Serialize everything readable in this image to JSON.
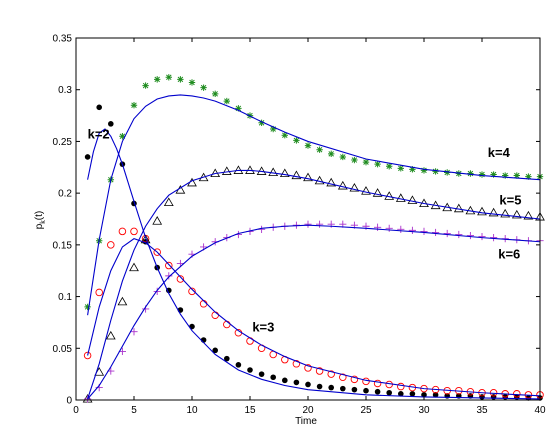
{
  "chart_data": {
    "type": "scatter",
    "title": "",
    "xlabel": "Time",
    "ylabel": "p_k(t)",
    "ylabel_main": "p",
    "ylabel_sub": "k",
    "ylabel_tail": "(t)",
    "xlim": [
      0,
      40
    ],
    "ylim": [
      0,
      0.35
    ],
    "xticks": [
      0,
      5,
      10,
      15,
      20,
      25,
      30,
      35,
      40
    ],
    "yticks": [
      0,
      0.05,
      0.1,
      0.15,
      0.2,
      0.25,
      0.3,
      0.35
    ],
    "grid": false,
    "legend": "none",
    "annotations": [
      {
        "text": "k=2",
        "x": 1.0,
        "y": 0.253
      },
      {
        "text": "k=3",
        "x": 15.2,
        "y": 0.066
      },
      {
        "text": "k=4",
        "x": 35.5,
        "y": 0.235
      },
      {
        "text": "k=5",
        "x": 36.5,
        "y": 0.189
      },
      {
        "text": "k=6",
        "x": 36.4,
        "y": 0.137
      }
    ],
    "series": [
      {
        "key": "k2_points",
        "marker": "filled-circle",
        "color": "#000000",
        "x": [
          1,
          2,
          3,
          4,
          5,
          6,
          7,
          8,
          9,
          10,
          11,
          12,
          13,
          14,
          15,
          16,
          17,
          18,
          19,
          20,
          21,
          22,
          23,
          24,
          25,
          26,
          27,
          28,
          29,
          30,
          31,
          32,
          33,
          34,
          35,
          36,
          37,
          38,
          39,
          40
        ],
        "y": [
          0.235,
          0.283,
          0.267,
          0.228,
          0.19,
          0.153,
          0.128,
          0.106,
          0.087,
          0.071,
          0.058,
          0.048,
          0.04,
          0.034,
          0.029,
          0.025,
          0.022,
          0.019,
          0.017,
          0.015,
          0.013,
          0.012,
          0.011,
          0.01,
          0.009,
          0.008,
          0.007,
          0.006,
          0.006,
          0.005,
          0.005,
          0.004,
          0.004,
          0.004,
          0.003,
          0.003,
          0.003,
          0.003,
          0.002,
          0.002
        ]
      },
      {
        "key": "k3_points",
        "marker": "open-circle",
        "color": "#ff0000",
        "x": [
          1,
          2,
          3,
          4,
          5,
          6,
          7,
          8,
          9,
          10,
          11,
          12,
          13,
          14,
          15,
          16,
          17,
          18,
          19,
          20,
          21,
          22,
          23,
          24,
          25,
          26,
          27,
          28,
          29,
          30,
          31,
          32,
          33,
          34,
          35,
          36,
          37,
          38,
          39,
          40
        ],
        "y": [
          0.043,
          0.104,
          0.15,
          0.163,
          0.163,
          0.156,
          0.143,
          0.13,
          0.117,
          0.105,
          0.093,
          0.082,
          0.073,
          0.065,
          0.057,
          0.05,
          0.044,
          0.039,
          0.035,
          0.031,
          0.028,
          0.025,
          0.022,
          0.02,
          0.018,
          0.016,
          0.015,
          0.013,
          0.012,
          0.011,
          0.01,
          0.009,
          0.009,
          0.008,
          0.007,
          0.007,
          0.006,
          0.006,
          0.005,
          0.005
        ]
      },
      {
        "key": "k4_points",
        "marker": "asterisk",
        "color": "#1f8c1f",
        "x": [
          1,
          2,
          3,
          4,
          5,
          6,
          7,
          8,
          9,
          10,
          11,
          12,
          13,
          14,
          15,
          16,
          17,
          18,
          19,
          20,
          21,
          22,
          23,
          24,
          25,
          26,
          27,
          28,
          29,
          30,
          31,
          32,
          33,
          34,
          35,
          36,
          37,
          38,
          39,
          40
        ],
        "y": [
          0.09,
          0.154,
          0.213,
          0.255,
          0.285,
          0.304,
          0.31,
          0.312,
          0.31,
          0.307,
          0.302,
          0.296,
          0.289,
          0.282,
          0.275,
          0.268,
          0.262,
          0.256,
          0.251,
          0.246,
          0.242,
          0.238,
          0.235,
          0.232,
          0.23,
          0.228,
          0.226,
          0.224,
          0.223,
          0.222,
          0.221,
          0.22,
          0.219,
          0.219,
          0.218,
          0.218,
          0.217,
          0.217,
          0.216,
          0.216
        ]
      },
      {
        "key": "k5_points",
        "marker": "triangle",
        "color": "#000000",
        "x": [
          1,
          2,
          3,
          4,
          5,
          6,
          7,
          8,
          9,
          10,
          11,
          12,
          13,
          14,
          15,
          16,
          17,
          18,
          19,
          20,
          21,
          22,
          23,
          24,
          25,
          26,
          27,
          28,
          29,
          30,
          31,
          32,
          33,
          34,
          35,
          36,
          37,
          38,
          39,
          40
        ],
        "y": [
          0.001,
          0.027,
          0.062,
          0.095,
          0.128,
          0.155,
          0.173,
          0.191,
          0.203,
          0.21,
          0.215,
          0.219,
          0.221,
          0.222,
          0.222,
          0.221,
          0.22,
          0.219,
          0.217,
          0.215,
          0.212,
          0.21,
          0.207,
          0.205,
          0.202,
          0.2,
          0.197,
          0.195,
          0.193,
          0.19,
          0.188,
          0.186,
          0.185,
          0.183,
          0.182,
          0.181,
          0.18,
          0.179,
          0.178,
          0.177
        ]
      },
      {
        "key": "k6_points",
        "marker": "plus",
        "color": "#aa33cc",
        "x": [
          1,
          2,
          3,
          4,
          5,
          6,
          7,
          8,
          9,
          10,
          11,
          12,
          13,
          14,
          15,
          16,
          17,
          18,
          19,
          20,
          21,
          22,
          23,
          24,
          25,
          26,
          27,
          28,
          29,
          30,
          31,
          32,
          33,
          34,
          35,
          36,
          37,
          38,
          39,
          40
        ],
        "y": [
          0.001,
          0.012,
          0.028,
          0.047,
          0.066,
          0.088,
          0.105,
          0.12,
          0.132,
          0.141,
          0.148,
          0.153,
          0.157,
          0.16,
          0.163,
          0.165,
          0.167,
          0.168,
          0.169,
          0.17,
          0.17,
          0.17,
          0.17,
          0.169,
          0.168,
          0.167,
          0.166,
          0.165,
          0.164,
          0.163,
          0.162,
          0.161,
          0.16,
          0.159,
          0.158,
          0.157,
          0.156,
          0.155,
          0.154,
          0.154
        ]
      },
      {
        "key": "k2_curve",
        "marker": "line",
        "color": "#0000cc",
        "x": [
          1,
          1.5,
          2,
          2.5,
          3,
          3.5,
          4,
          5,
          6,
          7,
          8,
          9,
          10,
          12,
          14,
          16,
          18,
          20,
          25,
          30,
          35,
          40
        ],
        "y": [
          0.213,
          0.24,
          0.258,
          0.262,
          0.255,
          0.243,
          0.228,
          0.192,
          0.157,
          0.128,
          0.103,
          0.083,
          0.067,
          0.044,
          0.029,
          0.02,
          0.014,
          0.01,
          0.005,
          0.003,
          0.002,
          0.001
        ]
      },
      {
        "key": "k3_curve",
        "marker": "line",
        "color": "#0000cc",
        "x": [
          1,
          2,
          3,
          4,
          5,
          6,
          7,
          8,
          10,
          12,
          14,
          16,
          18,
          20,
          25,
          30,
          35,
          40
        ],
        "y": [
          0.043,
          0.09,
          0.125,
          0.148,
          0.156,
          0.152,
          0.143,
          0.131,
          0.107,
          0.085,
          0.067,
          0.053,
          0.042,
          0.033,
          0.019,
          0.011,
          0.007,
          0.004
        ]
      },
      {
        "key": "k4_curve",
        "marker": "line",
        "color": "#0000cc",
        "x": [
          1,
          2,
          3,
          4,
          5,
          6,
          7,
          8,
          9,
          10,
          11,
          12,
          14,
          16,
          18,
          20,
          25,
          30,
          35,
          40
        ],
        "y": [
          0.082,
          0.155,
          0.213,
          0.25,
          0.272,
          0.284,
          0.291,
          0.294,
          0.295,
          0.294,
          0.292,
          0.289,
          0.28,
          0.269,
          0.259,
          0.25,
          0.233,
          0.223,
          0.217,
          0.213
        ]
      },
      {
        "key": "k5_curve",
        "marker": "line",
        "color": "#0000cc",
        "x": [
          1,
          2,
          3,
          4,
          5,
          6,
          7,
          8,
          10,
          12,
          14,
          15,
          16,
          18,
          20,
          25,
          30,
          35,
          40
        ],
        "y": [
          0.001,
          0.035,
          0.077,
          0.115,
          0.145,
          0.168,
          0.185,
          0.198,
          0.212,
          0.219,
          0.222,
          0.222,
          0.221,
          0.218,
          0.214,
          0.201,
          0.19,
          0.181,
          0.175
        ]
      },
      {
        "key": "k6_curve",
        "marker": "line",
        "color": "#0000cc",
        "x": [
          1,
          2,
          3,
          4,
          5,
          6,
          7,
          8,
          10,
          12,
          14,
          16,
          18,
          20,
          22,
          25,
          30,
          35,
          40
        ],
        "y": [
          0.001,
          0.014,
          0.032,
          0.052,
          0.072,
          0.09,
          0.106,
          0.119,
          0.139,
          0.152,
          0.161,
          0.166,
          0.168,
          0.169,
          0.168,
          0.166,
          0.162,
          0.157,
          0.153
        ]
      }
    ]
  }
}
